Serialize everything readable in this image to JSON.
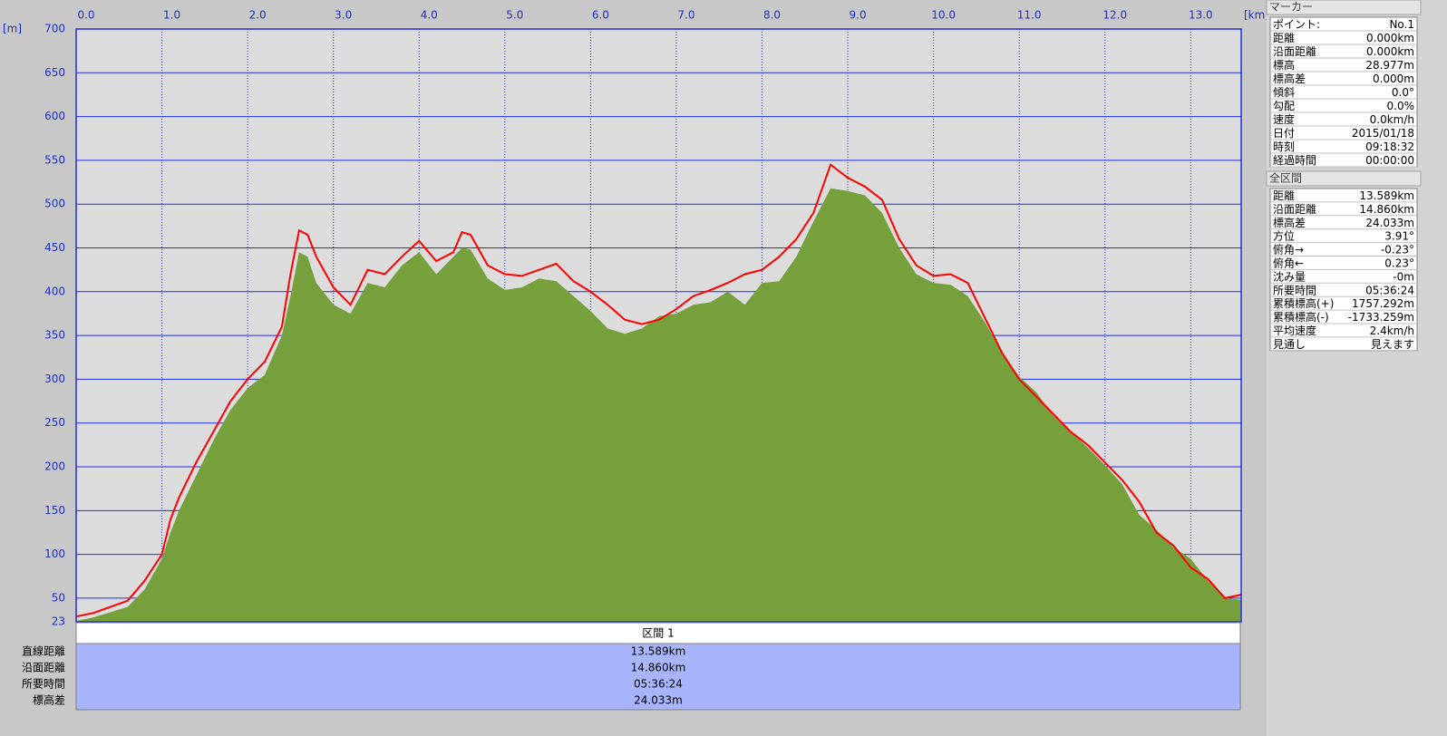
{
  "chart_data": {
    "type": "area-line",
    "xlabel": "[km]",
    "ylabel": "[m]",
    "x": [
      0,
      0.2,
      0.4,
      0.6,
      0.8,
      1.0,
      1.1,
      1.2,
      1.4,
      1.6,
      1.8,
      2.0,
      2.2,
      2.4,
      2.5,
      2.6,
      2.7,
      2.8,
      3.0,
      3.2,
      3.4,
      3.6,
      3.8,
      4.0,
      4.2,
      4.4,
      4.5,
      4.6,
      4.8,
      5.0,
      5.2,
      5.4,
      5.6,
      5.8,
      6.0,
      6.2,
      6.4,
      6.6,
      6.8,
      7.0,
      7.2,
      7.4,
      7.6,
      7.8,
      8.0,
      8.2,
      8.4,
      8.6,
      8.8,
      9.0,
      9.2,
      9.4,
      9.6,
      9.8,
      10.0,
      10.2,
      10.4,
      10.6,
      10.8,
      11.0,
      11.2,
      11.4,
      11.6,
      11.8,
      12.0,
      12.2,
      12.4,
      12.6,
      12.8,
      13.0,
      13.2,
      13.4,
      13.589
    ],
    "series": [
      {
        "kind": "area",
        "color": "#76a03c",
        "values": [
          24,
          28,
          34,
          40,
          60,
          95,
          125,
          150,
          190,
          230,
          265,
          290,
          305,
          350,
          395,
          445,
          440,
          410,
          385,
          375,
          410,
          405,
          430,
          445,
          420,
          440,
          450,
          448,
          415,
          402,
          405,
          415,
          412,
          395,
          378,
          358,
          352,
          358,
          372,
          375,
          385,
          388,
          400,
          385,
          410,
          412,
          440,
          480,
          518,
          515,
          510,
          490,
          450,
          420,
          410,
          408,
          395,
          365,
          330,
          303,
          285,
          258,
          240,
          222,
          202,
          180,
          145,
          128,
          108,
          95,
          70,
          50,
          48
        ]
      },
      {
        "kind": "line",
        "color": "#ff0000",
        "values": [
          29,
          33,
          40,
          47,
          70,
          100,
          140,
          165,
          205,
          240,
          275,
          300,
          320,
          360,
          420,
          470,
          465,
          440,
          405,
          385,
          425,
          420,
          440,
          458,
          435,
          445,
          468,
          465,
          430,
          420,
          418,
          425,
          432,
          412,
          400,
          385,
          368,
          363,
          368,
          380,
          395,
          402,
          410,
          420,
          425,
          440,
          460,
          490,
          545,
          530,
          520,
          505,
          460,
          430,
          418,
          420,
          410,
          370,
          330,
          300,
          280,
          260,
          240,
          225,
          205,
          185,
          160,
          125,
          110,
          85,
          72,
          50,
          54
        ]
      }
    ],
    "xlim": [
      0,
      13.589
    ],
    "ylim": [
      23,
      700
    ],
    "xticks": [
      {
        "value": 0,
        "label": "0.0"
      },
      {
        "value": 1,
        "label": "1.0"
      },
      {
        "value": 2,
        "label": "2.0"
      },
      {
        "value": 3,
        "label": "3.0"
      },
      {
        "value": 4,
        "label": "4.0"
      },
      {
        "value": 5,
        "label": "5.0"
      },
      {
        "value": 6,
        "label": "6.0"
      },
      {
        "value": 7,
        "label": "7.0"
      },
      {
        "value": 8,
        "label": "8.0"
      },
      {
        "value": 9,
        "label": "9.0"
      },
      {
        "value": 10,
        "label": "10.0"
      },
      {
        "value": 11,
        "label": "11.0"
      },
      {
        "value": 12,
        "label": "12.0"
      },
      {
        "value": 13,
        "label": "13.0"
      }
    ],
    "yticks": [
      23,
      50,
      100,
      150,
      200,
      250,
      300,
      350,
      400,
      450,
      500,
      550,
      600,
      650,
      700
    ],
    "grid": true
  },
  "section_table": {
    "header": "区間 1",
    "labels": [
      "直線距離",
      "沿面距離",
      "所要時間",
      "標高差"
    ],
    "values": [
      "13.589km",
      "14.860km",
      "05:36:24",
      "24.033m"
    ]
  },
  "marker_panel": {
    "title": "マーカー",
    "rows": [
      [
        "ポイント:",
        "No.1"
      ],
      [
        "距離",
        "0.000km"
      ],
      [
        "沿面距離",
        "0.000km"
      ],
      [
        "標高",
        "28.977m"
      ],
      [
        "標高差",
        "0.000m"
      ],
      [
        "傾斜",
        "0.0°"
      ],
      [
        "勾配",
        "0.0%"
      ],
      [
        "速度",
        "0.0km/h"
      ],
      [
        "日付",
        "2015/01/18"
      ],
      [
        "時刻",
        "09:18:32"
      ],
      [
        "経過時間",
        "00:00:00"
      ]
    ]
  },
  "total_panel": {
    "title": "全区間",
    "rows": [
      [
        "距離",
        "13.589km"
      ],
      [
        "沿面距離",
        "14.860km"
      ],
      [
        "標高差",
        "24.033m"
      ],
      [
        "方位",
        "3.91°"
      ],
      [
        "俯角→",
        "-0.23°"
      ],
      [
        "俯角←",
        "0.23°"
      ],
      [
        "沈み量",
        "-0m"
      ],
      [
        "所要時間",
        "05:36:24"
      ],
      [
        "累積標高(+)",
        "1757.292m"
      ],
      [
        "累積標高(-)",
        "-1733.259m"
      ],
      [
        "平均速度",
        "2.4km/h"
      ],
      [
        "見通し",
        "見えます"
      ]
    ]
  }
}
